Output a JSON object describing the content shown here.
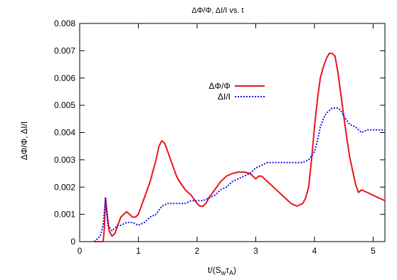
{
  "chart_data": {
    "type": "line",
    "title": "ΔΦ/Φ, ΔI/I  vs. t",
    "xlabel_main": "t/(S",
    "xlabel_sub1": "w",
    "xlabel_mid": "τ",
    "xlabel_sub2": "A",
    "xlabel_end": ")",
    "ylabel": "ΔΦ/Φ, ΔI/I",
    "xlim": [
      0,
      5.2
    ],
    "ylim": [
      0,
      0.008
    ],
    "xticks": [
      0,
      1,
      2,
      3,
      4,
      5
    ],
    "xtick_labels": [
      "0",
      "1",
      "2",
      "3",
      "4",
      "5"
    ],
    "yticks": [
      0,
      0.001,
      0.002,
      0.003,
      0.004,
      0.005,
      0.006,
      0.007,
      0.008
    ],
    "ytick_labels": [
      "0",
      "0.001",
      "0.002",
      "0.003",
      "0.004",
      "0.005",
      "0.006",
      "0.007",
      "0.008"
    ],
    "grid": false,
    "legend_position": "upper-middle",
    "series": [
      {
        "name": "ΔΦ/Φ",
        "color": "#e8141c",
        "dash": "solid",
        "x": [
          0.25,
          0.33,
          0.37,
          0.4,
          0.42,
          0.44,
          0.46,
          0.5,
          0.55,
          0.6,
          0.65,
          0.7,
          0.75,
          0.8,
          0.85,
          0.9,
          0.95,
          1.0,
          1.05,
          1.1,
          1.2,
          1.3,
          1.35,
          1.4,
          1.45,
          1.5,
          1.55,
          1.6,
          1.65,
          1.7,
          1.8,
          1.9,
          2.0,
          2.05,
          2.1,
          2.15,
          2.2,
          2.3,
          2.4,
          2.5,
          2.6,
          2.7,
          2.8,
          2.9,
          2.95,
          3.0,
          3.05,
          3.1,
          3.2,
          3.3,
          3.4,
          3.5,
          3.6,
          3.7,
          3.8,
          3.85,
          3.9,
          3.95,
          4.0,
          4.05,
          4.1,
          4.15,
          4.2,
          4.25,
          4.3,
          4.35,
          4.4,
          4.45,
          4.5,
          4.55,
          4.6,
          4.7,
          4.75,
          4.8,
          4.9,
          5.0,
          5.1,
          5.2
        ],
        "y": [
          0,
          0,
          0,
          0,
          0.0005,
          0.0016,
          0.0012,
          0.0004,
          0.0002,
          0.0003,
          0.0006,
          0.0009,
          0.001,
          0.0011,
          0.001,
          0.0009,
          0.0009,
          0.001,
          0.0013,
          0.0016,
          0.0022,
          0.003,
          0.0035,
          0.0037,
          0.0036,
          0.0033,
          0.003,
          0.0027,
          0.0024,
          0.0022,
          0.0019,
          0.0017,
          0.0014,
          0.0013,
          0.0013,
          0.0014,
          0.0016,
          0.0019,
          0.0022,
          0.0024,
          0.0025,
          0.00255,
          0.00255,
          0.0025,
          0.0024,
          0.0023,
          0.0024,
          0.0024,
          0.0022,
          0.002,
          0.0018,
          0.0016,
          0.0014,
          0.0013,
          0.0014,
          0.0016,
          0.002,
          0.003,
          0.0042,
          0.0052,
          0.006,
          0.0064,
          0.0067,
          0.0069,
          0.0069,
          0.0068,
          0.0062,
          0.0054,
          0.0046,
          0.0038,
          0.0031,
          0.0021,
          0.0018,
          0.0019,
          0.0018,
          0.0017,
          0.0016,
          0.0015
        ]
      },
      {
        "name": "ΔI/I",
        "color": "#1414e8",
        "dash": "dotted",
        "x": [
          0.25,
          0.35,
          0.4,
          0.44,
          0.48,
          0.55,
          0.6,
          0.65,
          0.7,
          0.8,
          0.9,
          1.0,
          1.1,
          1.2,
          1.3,
          1.4,
          1.5,
          1.6,
          1.7,
          1.8,
          1.9,
          2.0,
          2.1,
          2.2,
          2.3,
          2.4,
          2.5,
          2.6,
          2.7,
          2.8,
          2.9,
          3.0,
          3.1,
          3.2,
          3.4,
          3.6,
          3.8,
          3.9,
          4.0,
          4.05,
          4.1,
          4.15,
          4.2,
          4.25,
          4.3,
          4.35,
          4.4,
          4.45,
          4.5,
          4.6,
          4.7,
          4.8,
          4.9,
          5.0,
          5.1,
          5.2
        ],
        "y": [
          0,
          0.0002,
          0.0006,
          0.0016,
          0.0006,
          0.0004,
          0.0005,
          0.0006,
          0.0006,
          0.0007,
          0.0007,
          0.0006,
          0.0007,
          0.0009,
          0.001,
          0.0013,
          0.0014,
          0.0014,
          0.0014,
          0.0014,
          0.0015,
          0.0015,
          0.0015,
          0.0016,
          0.0017,
          0.0019,
          0.002,
          0.0022,
          0.0023,
          0.0024,
          0.0025,
          0.0027,
          0.0028,
          0.0029,
          0.0029,
          0.0029,
          0.0029,
          0.003,
          0.0033,
          0.0037,
          0.0042,
          0.0045,
          0.0047,
          0.0048,
          0.0049,
          0.0049,
          0.0049,
          0.0048,
          0.0046,
          0.0043,
          0.0042,
          0.004,
          0.0041,
          0.0041,
          0.0041,
          0.0041
        ]
      }
    ]
  }
}
